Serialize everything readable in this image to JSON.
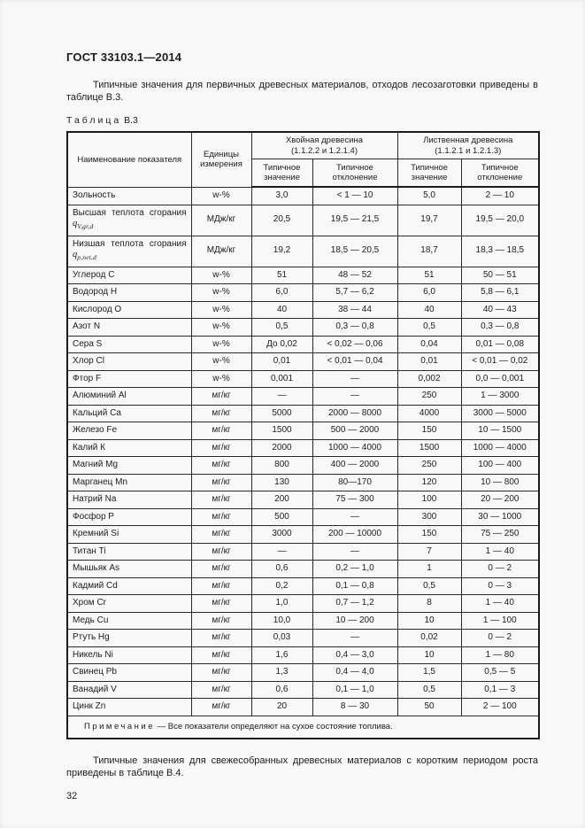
{
  "header": {
    "title": "ГОСТ 33103.1—2014"
  },
  "paragraphs": {
    "intro": "Типичные значения для первичных древесных материалов, отходов лесозаготовки приведены в таблице В.3.",
    "closing": "Типичные значения для свежесобранных древесных материалов с коротким периодом роста приведены в таблице В.4."
  },
  "table": {
    "caption_word": "Таблица",
    "caption_number": "В.3",
    "columns": {
      "indicator": "Наименование показателя",
      "units": "Единицы измерения"
    },
    "groups": [
      {
        "title": "Хвойная древесина",
        "ref": "(1.1.2.2 и 1.2.1.4)"
      },
      {
        "title": "Лиственная древесина",
        "ref": "(1.1.2.1 и 1.2.1.3)"
      }
    ],
    "subcolumns": [
      "Типичное значение",
      "Типичное отклонение",
      "Типичное значение",
      "Типичное отклонение"
    ],
    "rows": [
      {
        "name": "Зольность",
        "unit": "w-%",
        "values": [
          "3,0",
          "< 1 — 10",
          "5,0",
          "2 — 10"
        ]
      },
      {
        "name": "Высшая теплота сгорания",
        "formula_base": "q",
        "formula_sub": "V,gr,d",
        "unit": "МДж/кг",
        "values": [
          "20,5",
          "19,5 — 21,5",
          "19,7",
          "19,5 — 20,0"
        ]
      },
      {
        "name": "Низшая теплота сгорания",
        "formula_base": "q",
        "formula_sub": "p,net,d",
        "unit": "МДж/кг",
        "values": [
          "19,2",
          "18,5 — 20,5",
          "18,7",
          "18,3 — 18,5"
        ]
      },
      {
        "name": "Углерод С",
        "unit": "w-%",
        "values": [
          "51",
          "48 — 52",
          "51",
          "50 — 51"
        ]
      },
      {
        "name": "Водород Н",
        "unit": "w-%",
        "values": [
          "6,0",
          "5,7 — 6,2",
          "6,0",
          "5,8 — 6,1"
        ]
      },
      {
        "name": "Кислород О",
        "unit": "w-%",
        "values": [
          "40",
          "38 — 44",
          "40",
          "40 — 43"
        ]
      },
      {
        "name": "Азот N",
        "unit": "w-%",
        "values": [
          "0,5",
          "0,3 — 0,8",
          "0,5",
          "0,3 — 0,8"
        ]
      },
      {
        "name": "Сера S",
        "unit": "w-%",
        "values": [
          "До 0,02",
          "< 0,02 — 0,06",
          "0,04",
          "0,01 — 0,08"
        ]
      },
      {
        "name": "Хлор Cl",
        "unit": "w-%",
        "values": [
          "0,01",
          "< 0,01 — 0,04",
          "0,01",
          "< 0,01 — 0,02"
        ]
      },
      {
        "name": "Фтор F",
        "unit": "w-%",
        "values": [
          "0,001",
          "—",
          "0,002",
          "0,0 — 0,001"
        ]
      },
      {
        "name": "Алюминий Al",
        "unit": "мг/кг",
        "values": [
          "—",
          "—",
          "250",
          "1 — 3000"
        ]
      },
      {
        "name": "Кальций Ca",
        "unit": "мг/кг",
        "values": [
          "5000",
          "2000 — 8000",
          "4000",
          "3000 — 5000"
        ]
      },
      {
        "name": "Железо Fe",
        "unit": "мг/кг",
        "values": [
          "1500",
          "500 — 2000",
          "150",
          "10 — 1500"
        ]
      },
      {
        "name": "Калий К",
        "unit": "мг/кг",
        "values": [
          "2000",
          "1000 — 4000",
          "1500",
          "1000 — 4000"
        ]
      },
      {
        "name": "Магний Mg",
        "unit": "мг/кг",
        "values": [
          "800",
          "400 — 2000",
          "250",
          "100 — 400"
        ]
      },
      {
        "name": "Марганец Mn",
        "unit": "мг/кг",
        "values": [
          "130",
          "80—170",
          "120",
          "10 — 800"
        ]
      },
      {
        "name": "Натрий Na",
        "unit": "мг/кг",
        "values": [
          "200",
          "75 — 300",
          "100",
          "20 — 200"
        ]
      },
      {
        "name": "Фосфор Р",
        "unit": "мг/кг",
        "values": [
          "500",
          "—",
          "300",
          "30 — 1000"
        ]
      },
      {
        "name": "Кремний Si",
        "unit": "мг/кг",
        "values": [
          "3000",
          "200 — 10000",
          "150",
          "75 — 250"
        ]
      },
      {
        "name": "Титан Ti",
        "unit": "мг/кг",
        "values": [
          "—",
          "—",
          "7",
          "1 — 40"
        ]
      },
      {
        "name": "Мышьяк As",
        "unit": "мг/кг",
        "values": [
          "0,6",
          "0,2 — 1,0",
          "1",
          "0 — 2"
        ]
      },
      {
        "name": "Кадмий Cd",
        "unit": "мг/кг",
        "values": [
          "0,2",
          "0,1 — 0,8",
          "0,5",
          "0 — 3"
        ]
      },
      {
        "name": "Хром Cr",
        "unit": "мг/кг",
        "values": [
          "1,0",
          "0,7 — 1,2",
          "8",
          "1 — 40"
        ]
      },
      {
        "name": "Медь Cu",
        "unit": "мг/кг",
        "values": [
          "10,0",
          "10 — 200",
          "10",
          "1 — 100"
        ]
      },
      {
        "name": "Ртуть Hg",
        "unit": "мг/кг",
        "values": [
          "0,03",
          "—",
          "0,02",
          "0 — 2"
        ]
      },
      {
        "name": "Никель Ni",
        "unit": "мг/кг",
        "values": [
          "1,6",
          "0,4 — 3,0",
          "10",
          "1 — 80"
        ]
      },
      {
        "name": "Свинец Pb",
        "unit": "мг/кг",
        "values": [
          "1,3",
          "0,4 — 4,0",
          "1,5",
          "0,5 — 5"
        ]
      },
      {
        "name": "Ванадий V",
        "unit": "мг/кг",
        "values": [
          "0,6",
          "0,1 — 1,0",
          "0,5",
          "0,1 — 3"
        ]
      },
      {
        "name": "Цинк Zn",
        "unit": "мг/кг",
        "values": [
          "20",
          "8 — 30",
          "50",
          "2 — 100"
        ]
      }
    ],
    "note_word": "Примечание",
    "note_text": "— Все показатели определяют на сухое состояние топлива."
  },
  "footer": {
    "page_number": "32"
  }
}
